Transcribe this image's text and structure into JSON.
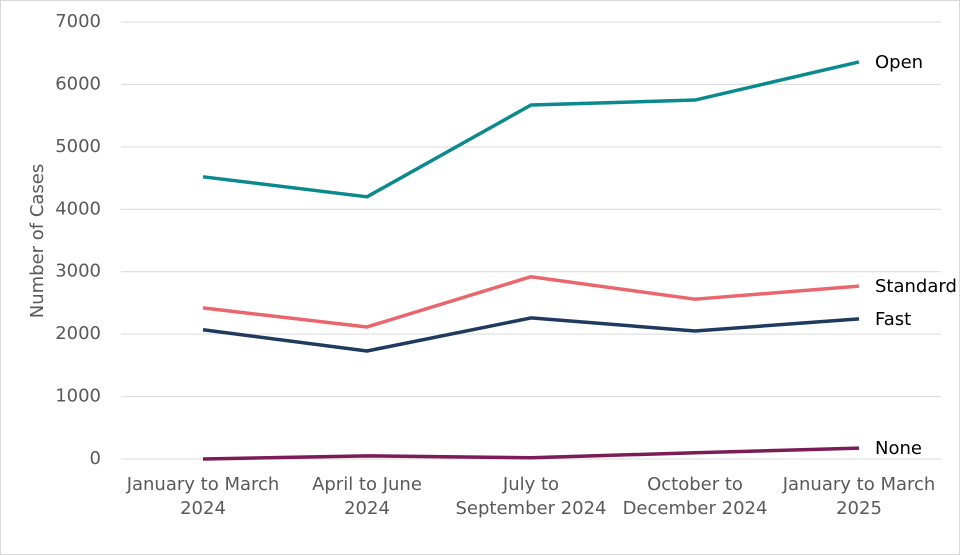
{
  "chart_data": {
    "type": "line",
    "y_label": "Number of Cases",
    "categories": [
      "January to March 2024",
      "April to June 2024",
      "July to September 2024",
      "October to December 2024",
      "January to March 2025"
    ],
    "series": [
      {
        "name": "Open",
        "color": "#0b8a8e",
        "values": [
          4520,
          4200,
          5670,
          5750,
          6360
        ]
      },
      {
        "name": "Standard",
        "color": "#ea666c",
        "values": [
          2420,
          2115,
          2920,
          2560,
          2770
        ]
      },
      {
        "name": "Fast",
        "color": "#1f3a5f",
        "values": [
          2070,
          1730,
          2260,
          2050,
          2245
        ]
      },
      {
        "name": "None",
        "color": "#7b1c57",
        "values": [
          0,
          50,
          20,
          100,
          175
        ]
      }
    ],
    "ylim": [
      0,
      7000
    ],
    "yticks": [
      0,
      1000,
      2000,
      3000,
      4000,
      5000,
      6000,
      7000
    ],
    "grid": true
  }
}
